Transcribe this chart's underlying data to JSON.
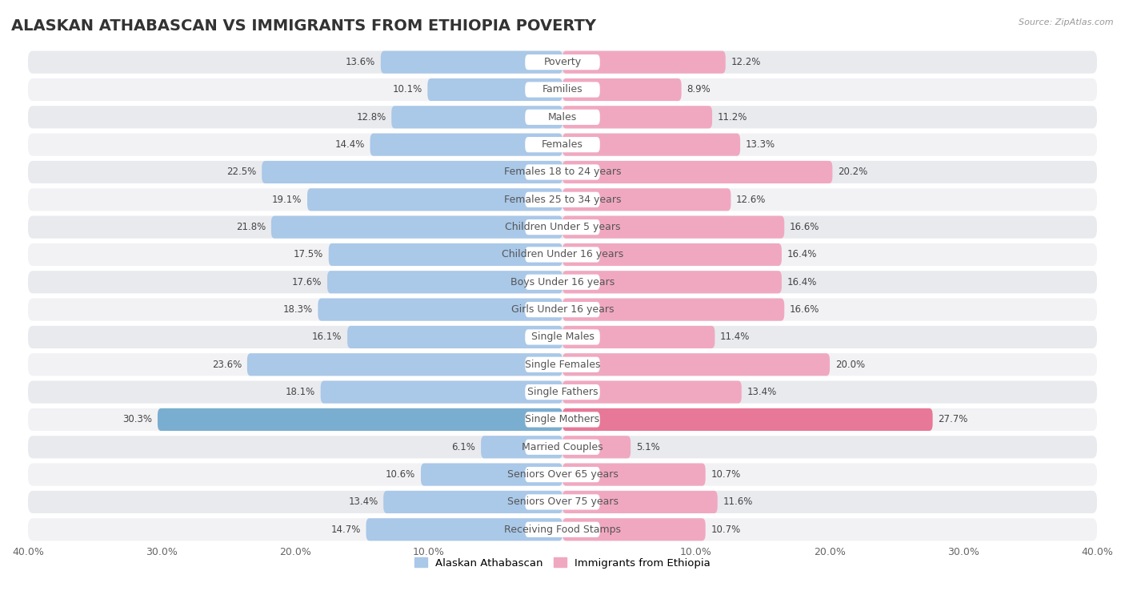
{
  "title": "ALASKAN ATHABASCAN VS IMMIGRANTS FROM ETHIOPIA POVERTY",
  "source": "Source: ZipAtlas.com",
  "categories": [
    "Poverty",
    "Families",
    "Males",
    "Females",
    "Females 18 to 24 years",
    "Females 25 to 34 years",
    "Children Under 5 years",
    "Children Under 16 years",
    "Boys Under 16 years",
    "Girls Under 16 years",
    "Single Males",
    "Single Females",
    "Single Fathers",
    "Single Mothers",
    "Married Couples",
    "Seniors Over 65 years",
    "Seniors Over 75 years",
    "Receiving Food Stamps"
  ],
  "left_values": [
    13.6,
    10.1,
    12.8,
    14.4,
    22.5,
    19.1,
    21.8,
    17.5,
    17.6,
    18.3,
    16.1,
    23.6,
    18.1,
    30.3,
    6.1,
    10.6,
    13.4,
    14.7
  ],
  "right_values": [
    12.2,
    8.9,
    11.2,
    13.3,
    20.2,
    12.6,
    16.6,
    16.4,
    16.4,
    16.6,
    11.4,
    20.0,
    13.4,
    27.7,
    5.1,
    10.7,
    11.6,
    10.7
  ],
  "left_color": "#aac8e8",
  "right_color": "#f0a8c0",
  "highlight_left_color": "#7aaed0",
  "highlight_right_color": "#e87898",
  "left_label": "Alaskan Athabascan",
  "right_label": "Immigrants from Ethiopia",
  "xlim": 40.0,
  "bg_color": "#ffffff",
  "row_colors": [
    "#e8eaee",
    "#f2f2f5"
  ],
  "title_fontsize": 14,
  "label_fontsize": 9,
  "value_fontsize": 8.5,
  "axis_tick_fontsize": 9
}
